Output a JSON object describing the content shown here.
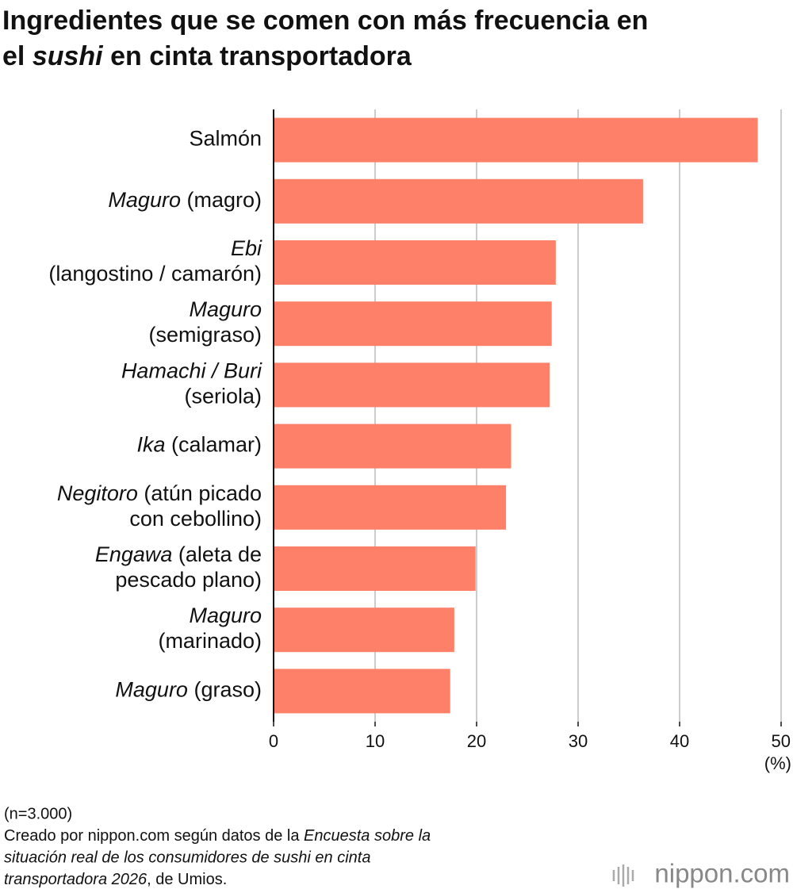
{
  "chart_data": {
    "type": "bar",
    "orientation": "horizontal",
    "title": [
      [
        "Ingredientes que se comen con más frecuencia en"
      ],
      [
        "el ",
        {
          "text": "sushi",
          "italic": true
        },
        " en cinta transportadora"
      ]
    ],
    "categories": [
      "Salmón",
      "Maguro (magro)",
      "Ebi\n(langostino / camarón)",
      "Maguro\n(semigraso)",
      "Hamachi / Buri\n(seriola)",
      "Ika (calamar)",
      "Negitoro (atún picado\ncon cebollino)",
      "Engawa (aleta de\npescado plano)",
      "Maguro\n(marinado)",
      "Maguro (graso)"
    ],
    "values": [
      47.7,
      36.4,
      27.8,
      27.4,
      27.2,
      23.4,
      22.9,
      19.9,
      17.8,
      17.4
    ],
    "color": "#ff8068",
    "xlim": [
      0,
      50
    ],
    "xticks": [
      0,
      10,
      20,
      30,
      40,
      50
    ],
    "x_label": "(%)",
    "grid": true,
    "note": "(n=3.000)",
    "source": [
      [
        "Creado por nippon.com según datos de la ",
        {
          "text": "Encuesta sobre la",
          "italic": true
        }
      ],
      [
        {
          "text": "situación real de los consumidores de sushi en cinta",
          "italic": true
        }
      ],
      [
        {
          "text": "transportadora 2026",
          "italic": true
        },
        ", de Umios."
      ]
    ],
    "logo": "nippon.com"
  }
}
